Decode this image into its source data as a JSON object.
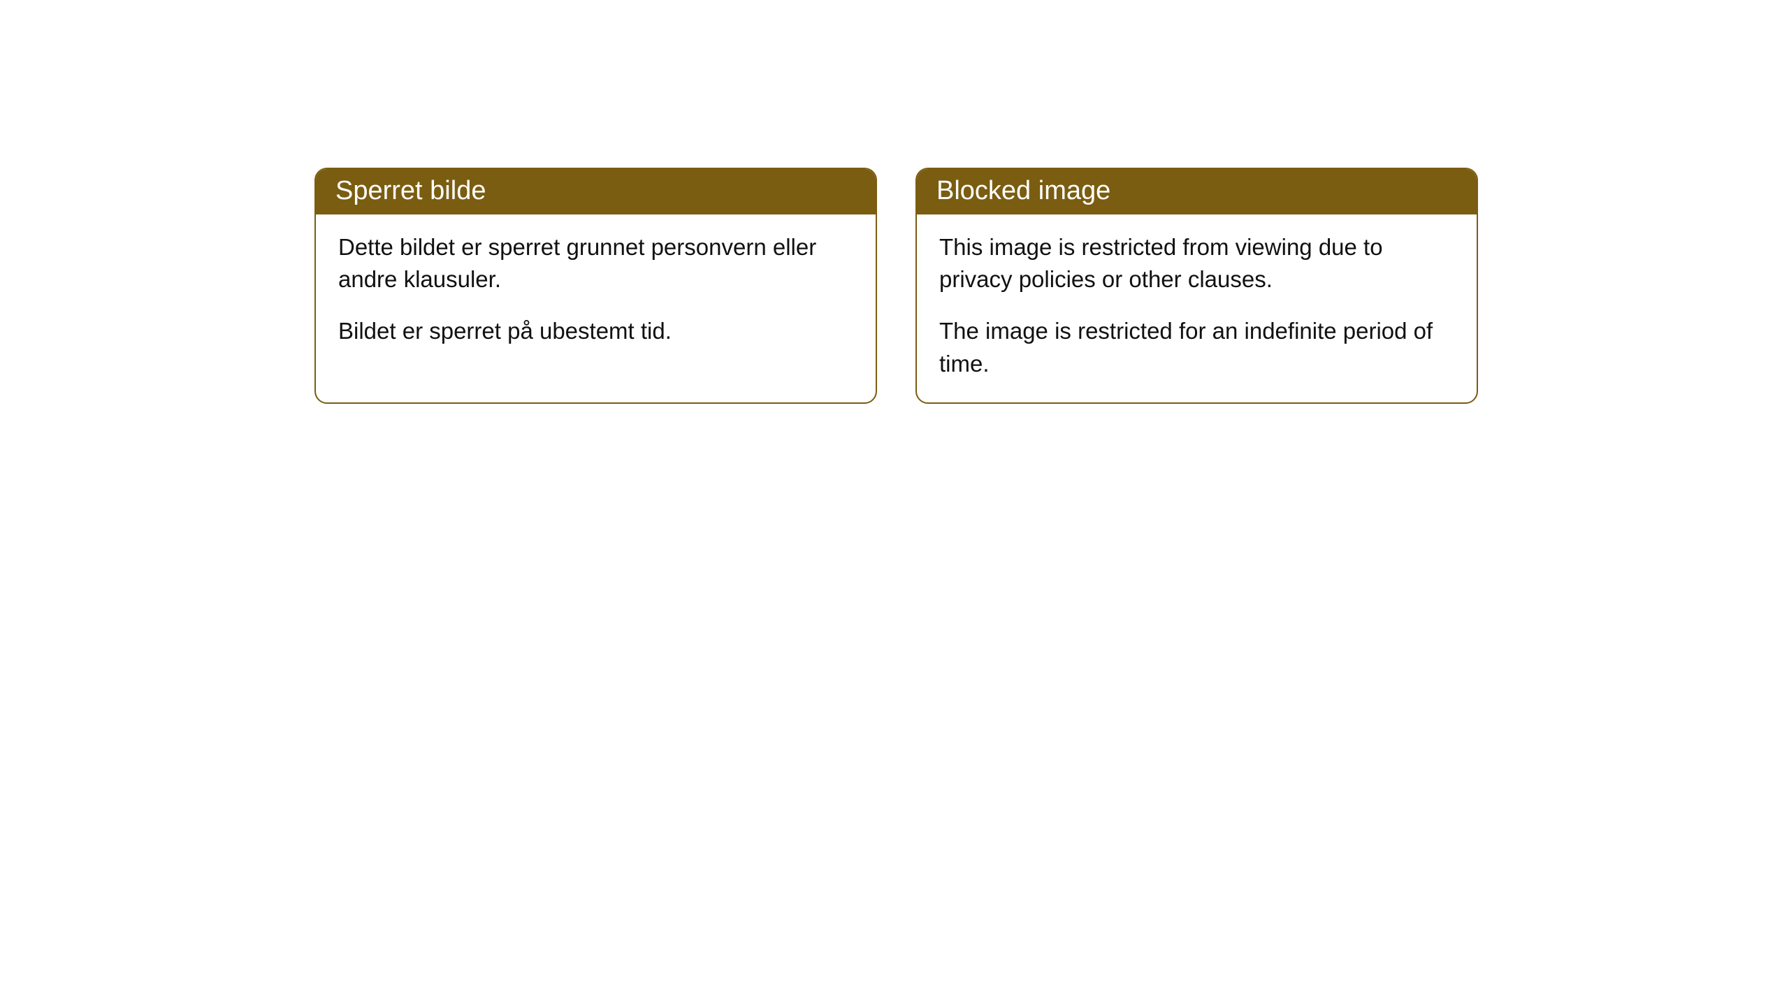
{
  "cards": [
    {
      "title": "Sperret bilde",
      "paragraph1": "Dette bildet er sperret grunnet personvern eller andre klausuler.",
      "paragraph2": "Bildet er sperret på ubestemt tid."
    },
    {
      "title": "Blocked image",
      "paragraph1": "This image is restricted from viewing due to privacy policies or other clauses.",
      "paragraph2": "The image is restricted for an indefinite period of time."
    }
  ],
  "style": {
    "header_bg": "#7a5d11",
    "header_text_color": "#ffffff",
    "border_color": "#7a5d11",
    "body_text_color": "#111111",
    "body_bg": "#ffffff",
    "border_radius": 18,
    "header_fontsize": 38,
    "body_fontsize": 33
  }
}
